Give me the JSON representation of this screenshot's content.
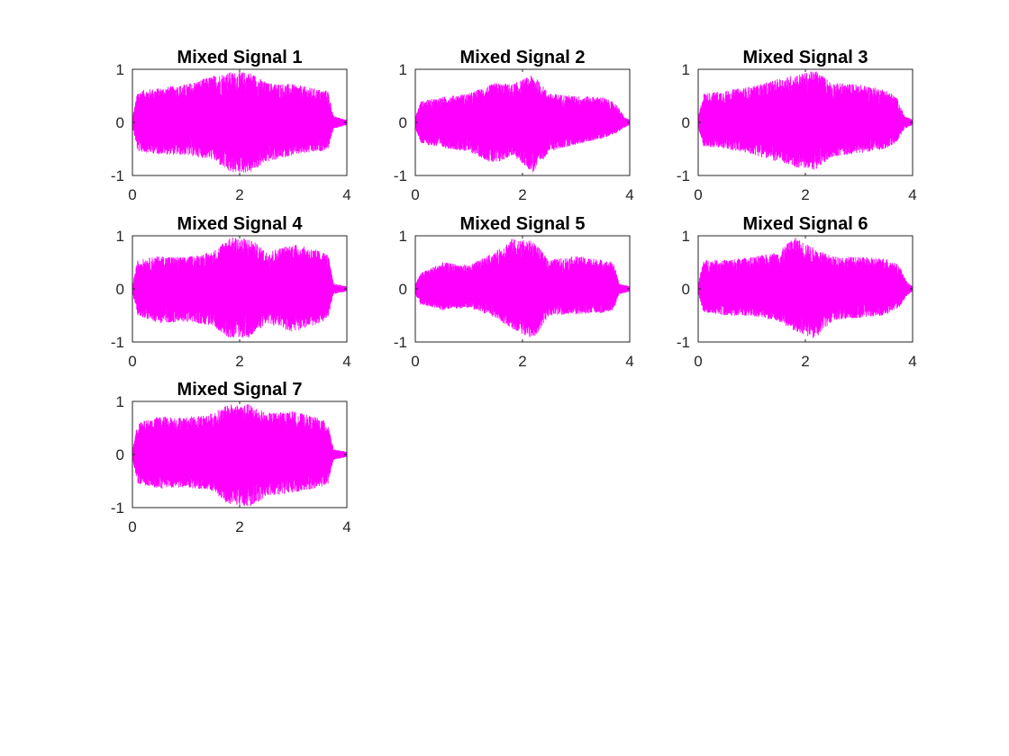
{
  "style": {
    "signal_color": "#ff00ff",
    "axes_color": "#262626",
    "background": "#ffffff"
  },
  "layout_hint": {
    "grid": "3 columns, 3 rows, 7 subplots filled"
  },
  "chart_data": [
    {
      "type": "line",
      "title": "Mixed Signal 1",
      "xlabel": "",
      "ylabel": "",
      "xlim": [
        0,
        4
      ],
      "ylim": [
        -1,
        1
      ],
      "xticks": [
        0,
        2,
        4
      ],
      "yticks": [
        -1,
        0,
        1
      ],
      "xtick_labels": [
        "0",
        "2",
        "4"
      ],
      "ytick_labels": [
        "-1",
        "0",
        "1"
      ],
      "grid": false,
      "envelope": {
        "x": [
          0,
          0.1,
          0.5,
          1,
          1.5,
          1.8,
          2.2,
          2.5,
          3,
          3.5,
          3.65,
          3.75,
          4
        ],
        "upper": [
          0.08,
          0.6,
          0.65,
          0.72,
          0.88,
          0.95,
          0.95,
          0.75,
          0.72,
          0.62,
          0.6,
          0.12,
          0.05
        ],
        "lower": [
          -0.08,
          -0.55,
          -0.6,
          -0.62,
          -0.7,
          -0.95,
          -0.95,
          -0.75,
          -0.62,
          -0.55,
          -0.5,
          -0.12,
          -0.05
        ]
      }
    },
    {
      "type": "line",
      "title": "Mixed Signal 2",
      "xlabel": "",
      "ylabel": "",
      "xlim": [
        0,
        4
      ],
      "ylim": [
        -1,
        1
      ],
      "xticks": [
        0,
        2,
        4
      ],
      "yticks": [
        -1,
        0,
        1
      ],
      "xtick_labels": [
        "0",
        "2",
        "4"
      ],
      "ytick_labels": [
        "-1",
        "0",
        "1"
      ],
      "grid": false,
      "envelope": {
        "x": [
          0,
          0.1,
          0.5,
          1,
          1.5,
          1.8,
          2.2,
          2.5,
          3,
          3.5,
          3.75,
          3.9,
          4
        ],
        "upper": [
          0.1,
          0.4,
          0.48,
          0.55,
          0.75,
          0.72,
          0.9,
          0.55,
          0.5,
          0.48,
          0.35,
          0.1,
          0.05
        ],
        "lower": [
          -0.1,
          -0.4,
          -0.48,
          -0.55,
          -0.8,
          -0.62,
          -0.95,
          -0.55,
          -0.42,
          -0.3,
          -0.2,
          -0.1,
          -0.05
        ]
      }
    },
    {
      "type": "line",
      "title": "Mixed Signal 3",
      "xlabel": "",
      "ylabel": "",
      "xlim": [
        0,
        4
      ],
      "ylim": [
        -1,
        1
      ],
      "xticks": [
        0,
        2,
        4
      ],
      "yticks": [
        -1,
        0,
        1
      ],
      "xtick_labels": [
        "0",
        "2",
        "4"
      ],
      "ytick_labels": [
        "-1",
        "0",
        "1"
      ],
      "grid": false,
      "envelope": {
        "x": [
          0,
          0.1,
          0.5,
          1,
          1.5,
          1.8,
          2.2,
          2.5,
          3,
          3.5,
          3.7,
          3.85,
          4
        ],
        "upper": [
          0.1,
          0.55,
          0.6,
          0.68,
          0.82,
          0.9,
          0.98,
          0.75,
          0.72,
          0.62,
          0.48,
          0.12,
          0.05
        ],
        "lower": [
          -0.1,
          -0.45,
          -0.5,
          -0.6,
          -0.75,
          -0.85,
          -0.9,
          -0.65,
          -0.58,
          -0.5,
          -0.38,
          -0.12,
          -0.05
        ]
      }
    },
    {
      "type": "line",
      "title": "Mixed Signal 4",
      "xlabel": "",
      "ylabel": "",
      "xlim": [
        0,
        4
      ],
      "ylim": [
        -1,
        1
      ],
      "xticks": [
        0,
        2,
        4
      ],
      "yticks": [
        -1,
        0,
        1
      ],
      "xtick_labels": [
        "0",
        "2",
        "4"
      ],
      "ytick_labels": [
        "-1",
        "0",
        "1"
      ],
      "grid": false,
      "envelope": {
        "x": [
          0,
          0.1,
          0.5,
          1,
          1.5,
          1.8,
          2.2,
          2.5,
          3,
          3.5,
          3.65,
          3.75,
          4
        ],
        "upper": [
          0.08,
          0.55,
          0.62,
          0.6,
          0.7,
          0.98,
          0.95,
          0.7,
          0.85,
          0.72,
          0.65,
          0.1,
          0.05
        ],
        "lower": [
          -0.08,
          -0.5,
          -0.65,
          -0.62,
          -0.7,
          -0.92,
          -0.92,
          -0.65,
          -0.82,
          -0.65,
          -0.55,
          -0.1,
          -0.05
        ]
      }
    },
    {
      "type": "line",
      "title": "Mixed Signal 5",
      "xlabel": "",
      "ylabel": "",
      "xlim": [
        0,
        4
      ],
      "ylim": [
        -1,
        1
      ],
      "xticks": [
        0,
        2,
        4
      ],
      "yticks": [
        -1,
        0,
        1
      ],
      "xtick_labels": [
        "0",
        "2",
        "4"
      ],
      "ytick_labels": [
        "-1",
        "0",
        "1"
      ],
      "grid": false,
      "envelope": {
        "x": [
          0,
          0.1,
          0.5,
          1,
          1.5,
          1.8,
          2.2,
          2.5,
          3,
          3.5,
          3.7,
          3.8,
          4
        ],
        "upper": [
          0.1,
          0.3,
          0.5,
          0.45,
          0.7,
          0.95,
          0.9,
          0.55,
          0.62,
          0.55,
          0.5,
          0.1,
          0.05
        ],
        "lower": [
          -0.1,
          -0.3,
          -0.4,
          -0.35,
          -0.55,
          -0.75,
          -0.95,
          -0.5,
          -0.48,
          -0.45,
          -0.4,
          -0.1,
          -0.05
        ]
      }
    },
    {
      "type": "line",
      "title": "Mixed Signal 6",
      "xlabel": "",
      "ylabel": "",
      "xlim": [
        0,
        4
      ],
      "ylim": [
        -1,
        1
      ],
      "xticks": [
        0,
        2,
        4
      ],
      "yticks": [
        -1,
        0,
        1
      ],
      "xtick_labels": [
        "0",
        "2",
        "4"
      ],
      "ytick_labels": [
        "-1",
        "0",
        "1"
      ],
      "grid": false,
      "envelope": {
        "x": [
          0,
          0.1,
          0.5,
          1,
          1.5,
          1.8,
          2.2,
          2.5,
          3,
          3.5,
          3.75,
          3.9,
          4
        ],
        "upper": [
          0.1,
          0.55,
          0.55,
          0.6,
          0.7,
          0.98,
          0.75,
          0.62,
          0.6,
          0.58,
          0.45,
          0.12,
          0.05
        ],
        "lower": [
          -0.1,
          -0.45,
          -0.5,
          -0.52,
          -0.62,
          -0.8,
          -0.95,
          -0.6,
          -0.55,
          -0.5,
          -0.35,
          -0.12,
          -0.05
        ]
      }
    },
    {
      "type": "line",
      "title": "Mixed Signal 7",
      "xlabel": "",
      "ylabel": "",
      "xlim": [
        0,
        4
      ],
      "ylim": [
        -1,
        1
      ],
      "xticks": [
        0,
        2,
        4
      ],
      "yticks": [
        -1,
        0,
        1
      ],
      "xtick_labels": [
        "0",
        "2",
        "4"
      ],
      "ytick_labels": [
        "-1",
        "0",
        "1"
      ],
      "grid": false,
      "envelope": {
        "x": [
          0,
          0.1,
          0.5,
          1,
          1.5,
          1.8,
          2.2,
          2.5,
          3,
          3.5,
          3.65,
          3.75,
          4
        ],
        "upper": [
          0.08,
          0.6,
          0.72,
          0.7,
          0.78,
          0.95,
          0.95,
          0.78,
          0.82,
          0.68,
          0.6,
          0.1,
          0.05
        ],
        "lower": [
          -0.08,
          -0.55,
          -0.65,
          -0.62,
          -0.7,
          -0.95,
          -0.98,
          -0.8,
          -0.72,
          -0.62,
          -0.55,
          -0.1,
          -0.05
        ]
      }
    }
  ]
}
